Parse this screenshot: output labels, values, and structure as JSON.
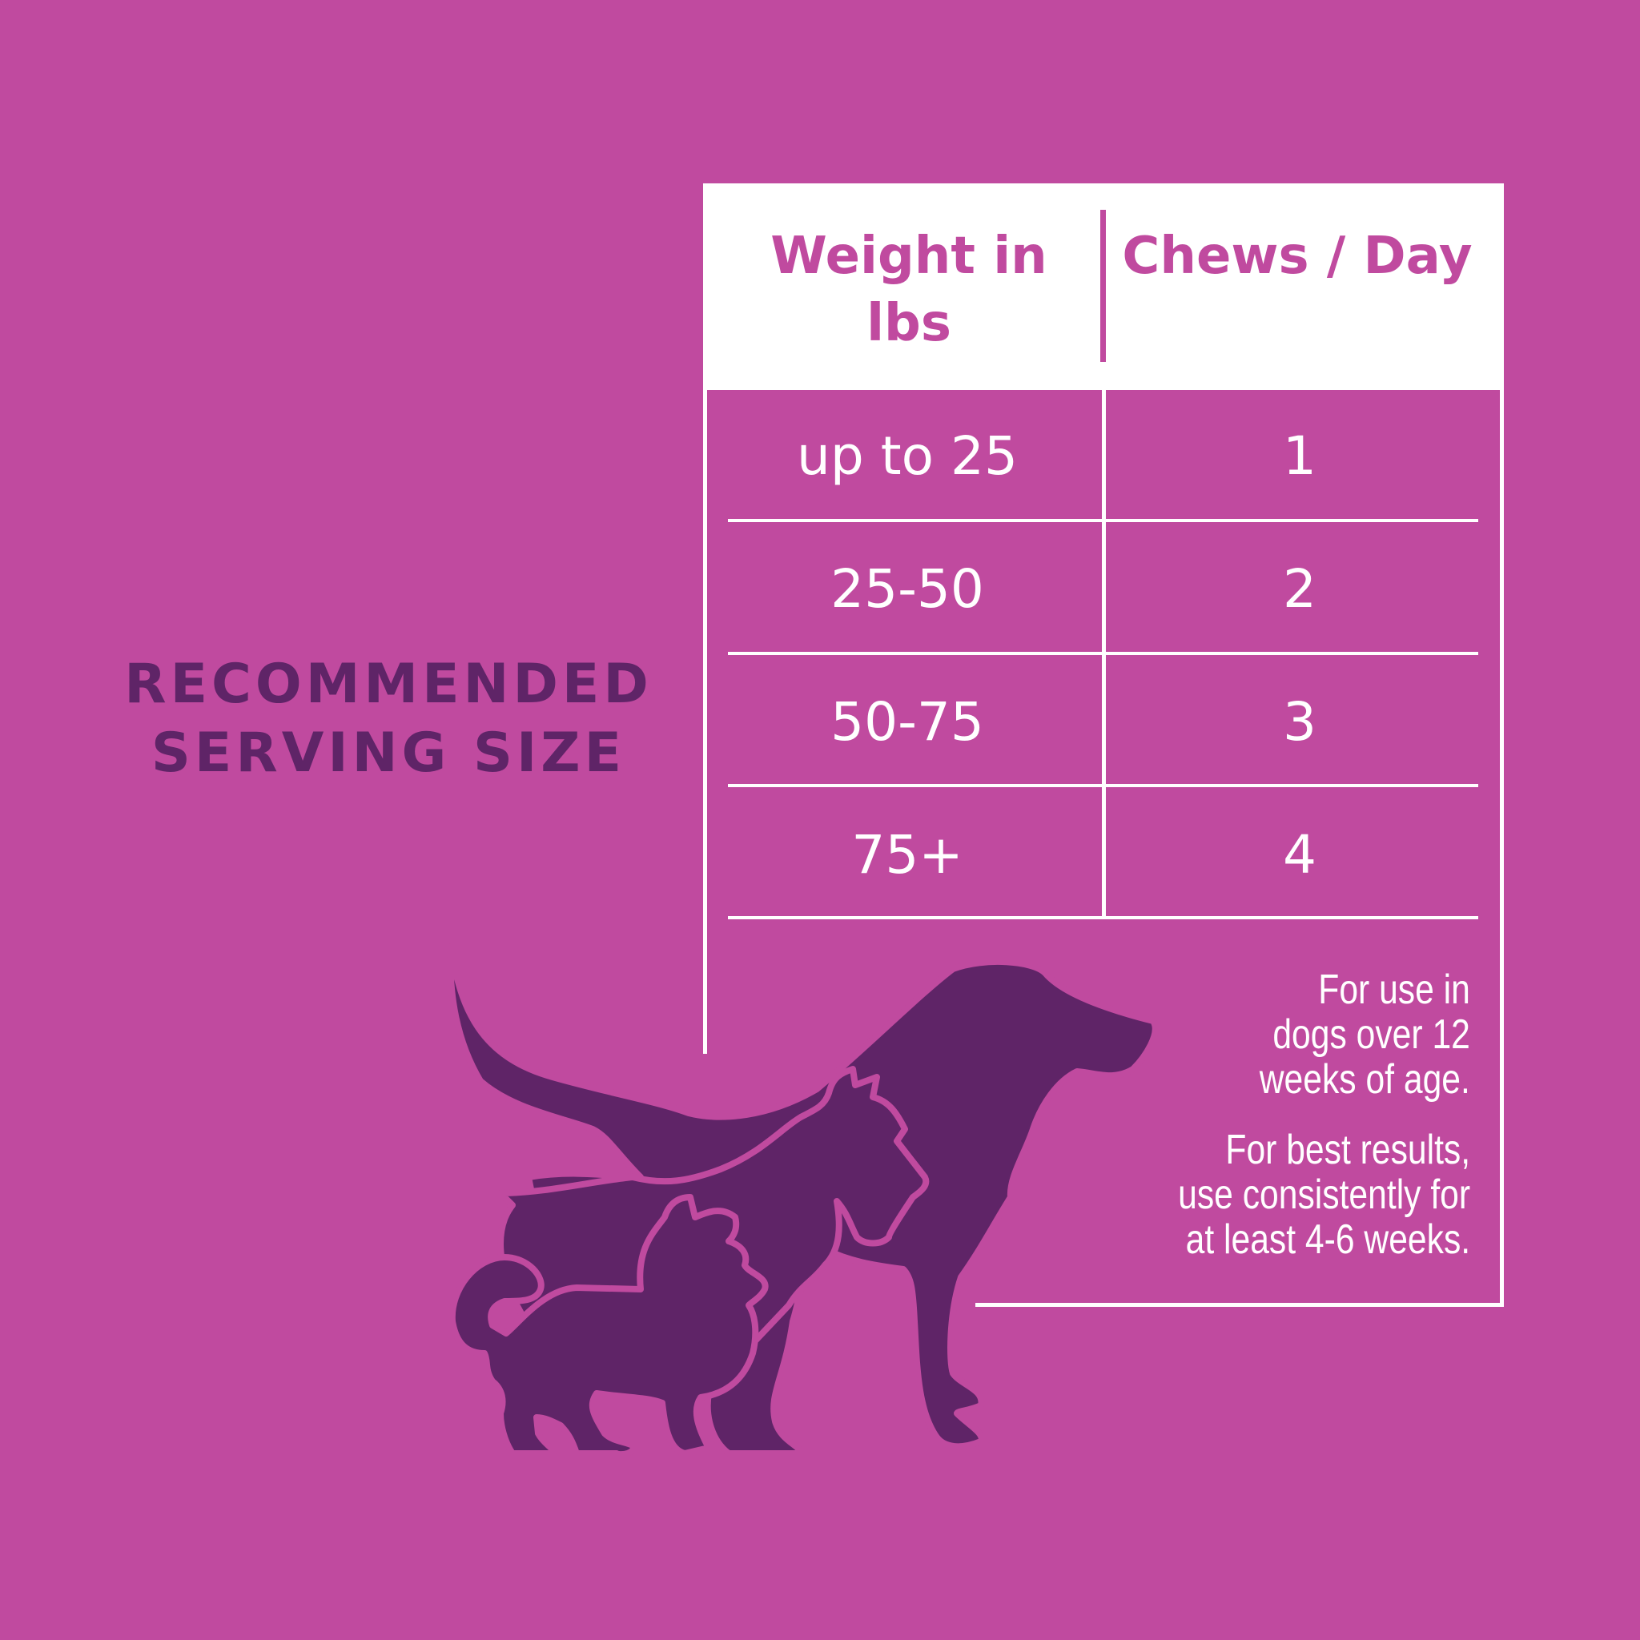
{
  "title": {
    "line1": "RECOMMENDED",
    "line2": "SERVING SIZE"
  },
  "table": {
    "headers": [
      "Weight in lbs",
      "Chews / Day"
    ],
    "rows": [
      {
        "weight": "up to 25",
        "chews": "1"
      },
      {
        "weight": "25-50",
        "chews": "2"
      },
      {
        "weight": "50-75",
        "chews": "3"
      },
      {
        "weight": "75+",
        "chews": "4"
      }
    ]
  },
  "notes": {
    "note1": [
      "For use in",
      "dogs over 12",
      "weeks of age."
    ],
    "note2": [
      "For best results,",
      "use consistently for",
      "at least 4-6 weeks."
    ]
  },
  "colors": {
    "background": "#c04a9f",
    "accent_dark": "#5f2467",
    "white": "#ffffff"
  },
  "illustration": "dog-cat-dog-silhouette-icon"
}
